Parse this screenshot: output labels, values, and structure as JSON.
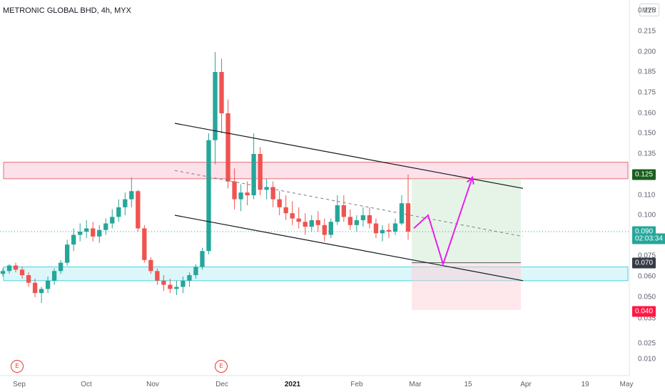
{
  "header": {
    "symbol_title": "METRONIC GLOBAL BHD, 4h, MYX",
    "currency": "MYR"
  },
  "colors": {
    "up": "#26a69a",
    "down": "#ef5350",
    "resistance_zone": "#f8bbd0",
    "support_zone": "#b2ebf2",
    "projection": "#e91eea",
    "target_zone": "#c8e6c9",
    "stop_zone": "#ffcdd2"
  },
  "chart_data": {
    "type": "candlestick",
    "y_axis": {
      "ticks": [
        "0.010",
        "0.025",
        "0.035",
        "0.050",
        "0.060",
        "0.075",
        "0.090",
        "0.100",
        "0.110",
        "0.125",
        "0.135",
        "0.150",
        "0.160",
        "0.175",
        "0.185",
        "0.200",
        "0.215",
        "0.225"
      ],
      "range": [
        0.005,
        0.23
      ]
    },
    "x_axis": {
      "labels": [
        "Sep",
        "Oct",
        "Nov",
        "Dec",
        "2021",
        "Feb",
        "Mar",
        "15",
        "Apr",
        "19",
        "May"
      ],
      "emphasized": [
        "2021"
      ]
    },
    "price_badges": [
      {
        "label": "0.125",
        "color": "#1b5e20",
        "value": 0.125
      },
      {
        "label": "0.090",
        "color": "#26a69a",
        "value": 0.09
      },
      {
        "label": "02:03:34",
        "color": "#26a69a",
        "value": 0.0855
      },
      {
        "label": "0.070",
        "color": "#363a45",
        "value": 0.07
      },
      {
        "label": "0.040",
        "color": "#ff1744",
        "value": 0.04
      }
    ],
    "annotations": {
      "resistance_zone": [
        0.122,
        0.131
      ],
      "support_zone": [
        0.058,
        0.067
      ],
      "channel_upper": [
        [
          "Nov 20",
          0.155
        ],
        [
          "Mar 30",
          0.115
        ]
      ],
      "channel_lower": [
        [
          "Nov 20",
          0.1
        ],
        [
          "Mar 30",
          0.058
        ]
      ],
      "channel_mid": [
        [
          "Nov 20",
          0.127
        ],
        [
          "Mar 30",
          0.087
        ]
      ],
      "current_price": 0.09,
      "projection_path": [
        [
          "Feb 28",
          0.092
        ],
        [
          "Mar 4",
          0.1
        ],
        [
          "Mar 10",
          0.069
        ],
        [
          "Mar 17",
          0.123
        ]
      ],
      "target_zone": [
        0.07,
        0.122
      ],
      "stop_zone": [
        0.041,
        0.07
      ],
      "event_markers": [
        "E",
        "E"
      ]
    },
    "series": [
      {
        "name": "price",
        "values": [
          [
            0.062,
            0.066,
            0.06,
            0.064
          ],
          [
            0.064,
            0.069,
            0.062,
            0.068
          ],
          [
            0.068,
            0.07,
            0.063,
            0.065
          ],
          [
            0.065,
            0.067,
            0.059,
            0.061
          ],
          [
            0.061,
            0.063,
            0.055,
            0.057
          ],
          [
            0.057,
            0.059,
            0.05,
            0.052
          ],
          [
            0.052,
            0.055,
            0.046,
            0.054
          ],
          [
            0.054,
            0.06,
            0.052,
            0.058
          ],
          [
            0.058,
            0.066,
            0.056,
            0.064
          ],
          [
            0.064,
            0.072,
            0.062,
            0.07
          ],
          [
            0.07,
            0.085,
            0.068,
            0.082
          ],
          [
            0.082,
            0.092,
            0.078,
            0.088
          ],
          [
            0.088,
            0.095,
            0.084,
            0.09
          ],
          [
            0.09,
            0.097,
            0.086,
            0.092
          ],
          [
            0.092,
            0.096,
            0.084,
            0.087
          ],
          [
            0.087,
            0.094,
            0.083,
            0.091
          ],
          [
            0.091,
            0.098,
            0.088,
            0.095
          ],
          [
            0.095,
            0.103,
            0.092,
            0.099
          ],
          [
            0.099,
            0.108,
            0.096,
            0.104
          ],
          [
            0.104,
            0.112,
            0.1,
            0.108
          ],
          [
            0.108,
            0.123,
            0.104,
            0.113
          ],
          [
            0.113,
            0.114,
            0.09,
            0.092
          ],
          [
            0.092,
            0.094,
            0.07,
            0.072
          ],
          [
            0.072,
            0.074,
            0.062,
            0.064
          ],
          [
            0.064,
            0.066,
            0.056,
            0.058
          ],
          [
            0.058,
            0.061,
            0.053,
            0.056
          ],
          [
            0.056,
            0.059,
            0.052,
            0.054
          ],
          [
            0.054,
            0.058,
            0.051,
            0.055
          ],
          [
            0.055,
            0.06,
            0.052,
            0.058
          ],
          [
            0.058,
            0.063,
            0.055,
            0.061
          ],
          [
            0.061,
            0.069,
            0.059,
            0.067
          ],
          [
            0.067,
            0.08,
            0.065,
            0.078
          ],
          [
            0.078,
            0.15,
            0.076,
            0.145
          ],
          [
            0.145,
            0.2,
            0.13,
            0.185
          ],
          [
            0.185,
            0.195,
            0.15,
            0.16
          ],
          [
            0.16,
            0.17,
            0.115,
            0.12
          ],
          [
            0.12,
            0.128,
            0.103,
            0.108
          ],
          [
            0.108,
            0.118,
            0.102,
            0.112
          ],
          [
            0.112,
            0.12,
            0.105,
            0.11
          ],
          [
            0.11,
            0.15,
            0.108,
            0.135
          ],
          [
            0.135,
            0.14,
            0.11,
            0.114
          ],
          [
            0.114,
            0.122,
            0.108,
            0.116
          ],
          [
            0.116,
            0.12,
            0.104,
            0.108
          ],
          [
            0.108,
            0.113,
            0.1,
            0.104
          ],
          [
            0.104,
            0.11,
            0.097,
            0.101
          ],
          [
            0.101,
            0.107,
            0.094,
            0.098
          ],
          [
            0.098,
            0.104,
            0.092,
            0.096
          ],
          [
            0.096,
            0.101,
            0.088,
            0.093
          ],
          [
            0.093,
            0.1,
            0.09,
            0.097
          ],
          [
            0.097,
            0.102,
            0.09,
            0.094
          ],
          [
            0.094,
            0.098,
            0.084,
            0.088
          ],
          [
            0.088,
            0.098,
            0.086,
            0.096
          ],
          [
            0.096,
            0.11,
            0.094,
            0.105
          ],
          [
            0.105,
            0.11,
            0.096,
            0.099
          ],
          [
            0.099,
            0.103,
            0.091,
            0.094
          ],
          [
            0.094,
            0.1,
            0.09,
            0.097
          ],
          [
            0.097,
            0.104,
            0.093,
            0.1
          ],
          [
            0.1,
            0.104,
            0.092,
            0.095
          ],
          [
            0.095,
            0.098,
            0.086,
            0.089
          ],
          [
            0.089,
            0.094,
            0.084,
            0.091
          ],
          [
            0.091,
            0.095,
            0.086,
            0.09
          ],
          [
            0.09,
            0.098,
            0.088,
            0.095
          ],
          [
            0.095,
            0.11,
            0.094,
            0.106
          ],
          [
            0.106,
            0.125,
            0.085,
            0.09
          ]
        ]
      }
    ]
  }
}
